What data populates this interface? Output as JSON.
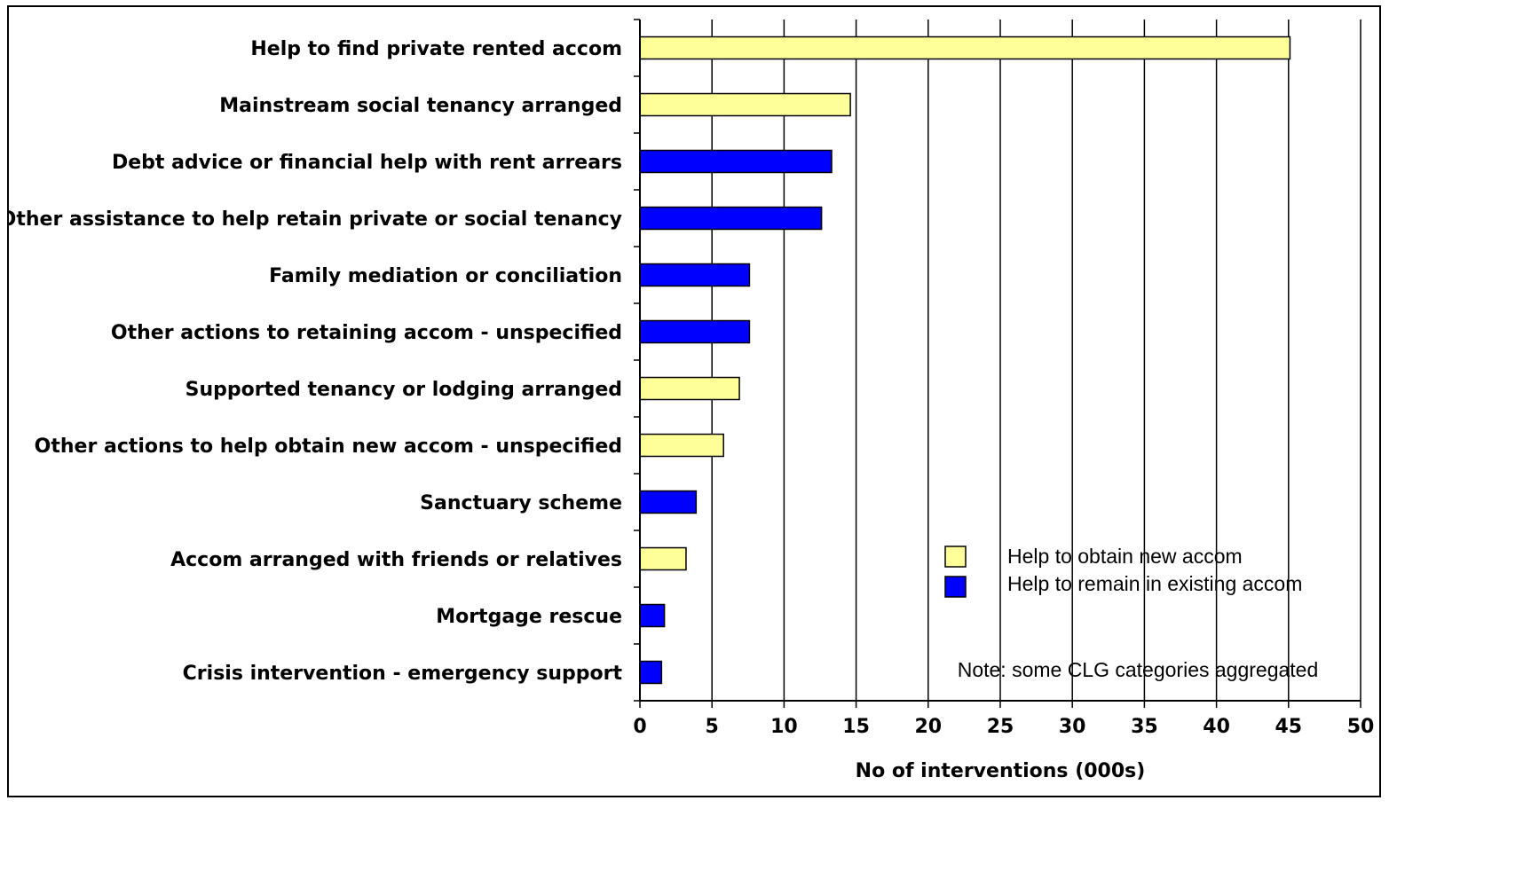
{
  "chart_data": {
    "type": "bar",
    "orientation": "horizontal",
    "categories": [
      "Help to find private rented accom",
      "Mainstream social tenancy arranged",
      "Debt advice or financial help with rent arrears",
      "Other assistance to help retain private or social tenancy",
      "Family mediation or conciliation",
      "Other actions to retaining accom - unspecified",
      "Supported tenancy or lodging arranged",
      "Other actions to help obtain new accom - unspecified",
      "Sanctuary scheme",
      "Accom arranged with friends or relatives",
      "Mortgage rescue",
      "Crisis intervention - emergency support"
    ],
    "values": [
      45.1,
      14.6,
      13.3,
      12.6,
      7.6,
      7.6,
      6.9,
      5.8,
      3.9,
      3.2,
      1.7,
      1.5
    ],
    "series_index": [
      0,
      0,
      1,
      1,
      1,
      1,
      0,
      0,
      1,
      0,
      1,
      1
    ],
    "series": [
      {
        "name": "Help to obtain new accom",
        "color": "#ffff99"
      },
      {
        "name": "Help to remain in existing accom",
        "color": "#0000ff"
      }
    ],
    "xlabel": "No of interventions (000s)",
    "xlim": [
      0,
      50
    ],
    "xticks": [
      0,
      5,
      10,
      15,
      20,
      25,
      30,
      35,
      40,
      45,
      50
    ],
    "grid": "vertical",
    "legend_position": "bottom-right",
    "note": "Note: some CLG categories aggregated"
  }
}
